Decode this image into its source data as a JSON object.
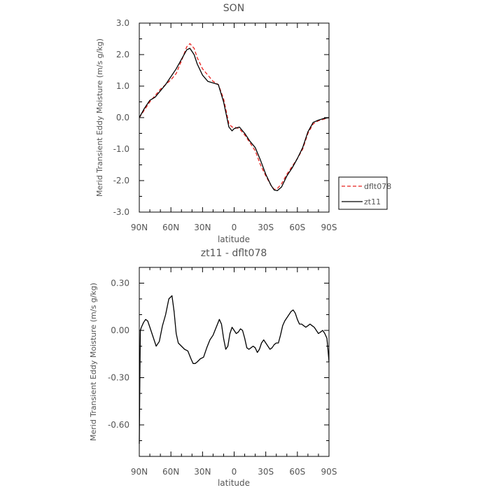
{
  "chart_data": [
    {
      "type": "line",
      "title": "SON",
      "xlabel": "latitude",
      "ylabel": "Merid Transient Eddy Moisture (m/s g/kg)",
      "x_ticks": [
        "90N",
        "60N",
        "30N",
        "0",
        "30S",
        "60S",
        "90S"
      ],
      "x_tick_values": [
        90,
        60,
        30,
        0,
        -30,
        -60,
        -90
      ],
      "xlim": [
        90,
        -90
      ],
      "y_ticks": [
        "3.0",
        "2.0",
        "1.0",
        "0.0",
        "-1.0",
        "-2.0",
        "-3.0"
      ],
      "y_tick_values": [
        3,
        2,
        1,
        0,
        -1,
        -2,
        -3
      ],
      "ylim": [
        -3,
        3
      ],
      "legend_position": "outside-right",
      "grid": false,
      "series": [
        {
          "name": "dflt078",
          "color": "#e8211e",
          "dash": "dashed",
          "x": [
            90,
            85,
            80,
            75,
            70,
            65,
            60,
            55,
            50,
            45,
            42,
            38,
            35,
            30,
            25,
            20,
            15,
            10,
            5,
            2,
            0,
            -5,
            -10,
            -15,
            -20,
            -25,
            -30,
            -35,
            -38,
            -41,
            -45,
            -50,
            -55,
            -60,
            -65,
            -70,
            -75,
            -80,
            -85,
            -90
          ],
          "y": [
            0.0,
            0.25,
            0.5,
            0.7,
            0.9,
            1.05,
            1.2,
            1.4,
            1.8,
            2.25,
            2.35,
            2.2,
            1.9,
            1.55,
            1.35,
            1.15,
            1.05,
            0.6,
            -0.2,
            -0.3,
            -0.3,
            -0.35,
            -0.55,
            -0.8,
            -1.05,
            -1.5,
            -1.85,
            -2.15,
            -2.28,
            -2.25,
            -2.1,
            -1.8,
            -1.55,
            -1.3,
            -1.0,
            -0.5,
            -0.2,
            -0.1,
            -0.05,
            0.0
          ]
        },
        {
          "name": "zt11",
          "color": "#000000",
          "dash": "solid",
          "x": [
            90,
            85,
            80,
            75,
            70,
            65,
            60,
            55,
            50,
            45,
            42,
            38,
            35,
            30,
            25,
            20,
            15,
            10,
            5,
            2,
            0,
            -5,
            -10,
            -15,
            -20,
            -25,
            -30,
            -35,
            -38,
            -41,
            -45,
            -50,
            -55,
            -60,
            -65,
            -70,
            -75,
            -80,
            -85,
            -90
          ],
          "y": [
            0.0,
            0.3,
            0.55,
            0.65,
            0.85,
            1.05,
            1.3,
            1.55,
            1.85,
            2.15,
            2.2,
            2.0,
            1.7,
            1.35,
            1.15,
            1.1,
            1.05,
            0.5,
            -0.3,
            -0.42,
            -0.35,
            -0.3,
            -0.5,
            -0.75,
            -0.95,
            -1.35,
            -1.8,
            -2.15,
            -2.3,
            -2.32,
            -2.2,
            -1.85,
            -1.6,
            -1.3,
            -0.95,
            -0.45,
            -0.15,
            -0.08,
            -0.03,
            0.0
          ]
        }
      ]
    },
    {
      "type": "line",
      "title": "zt11 - dflt078",
      "xlabel": "latitude",
      "ylabel": "Merid Transient Eddy Moisture (m/s g/kg)",
      "x_ticks": [
        "90N",
        "60N",
        "30N",
        "0",
        "30S",
        "60S",
        "90S"
      ],
      "x_tick_values": [
        90,
        60,
        30,
        0,
        -30,
        -60,
        -90
      ],
      "xlim": [
        90,
        -90
      ],
      "y_ticks": [
        "0.30",
        "0.00",
        "-0.30",
        "-0.60"
      ],
      "y_tick_values": [
        0.3,
        0.0,
        -0.3,
        -0.6
      ],
      "ylim": [
        -0.8,
        0.4
      ],
      "grid": false,
      "series": [
        {
          "color": "#000000",
          "dash": "solid",
          "x": [
            90,
            89.5,
            89,
            88,
            86,
            84,
            82,
            80,
            77,
            74,
            71,
            68,
            65,
            62,
            59,
            57,
            55,
            53,
            50,
            47,
            44,
            41,
            39,
            37,
            35,
            32,
            29,
            26,
            23,
            20,
            17,
            14,
            12,
            10,
            8,
            6,
            4,
            2,
            0,
            -2,
            -4,
            -6,
            -8,
            -10,
            -12,
            -14,
            -16,
            -18,
            -20,
            -22,
            -24,
            -26,
            -28,
            -30,
            -32,
            -34,
            -36,
            -38,
            -40,
            -42,
            -44,
            -46,
            -48,
            -50,
            -52,
            -54,
            -56,
            -58,
            -60,
            -62,
            -64,
            -66,
            -68,
            -70,
            -72,
            -74,
            -76,
            -78,
            -80,
            -82,
            -84,
            -86,
            -88,
            -89,
            -90
          ],
          "y": [
            -0.72,
            -0.3,
            0.0,
            0.02,
            0.05,
            0.07,
            0.06,
            0.02,
            -0.04,
            -0.1,
            -0.07,
            0.03,
            0.1,
            0.2,
            0.22,
            0.12,
            -0.02,
            -0.08,
            -0.1,
            -0.12,
            -0.13,
            -0.18,
            -0.21,
            -0.21,
            -0.2,
            -0.18,
            -0.17,
            -0.11,
            -0.06,
            -0.03,
            0.02,
            0.07,
            0.04,
            -0.05,
            -0.12,
            -0.1,
            -0.02,
            0.02,
            0.0,
            -0.02,
            -0.01,
            0.01,
            0.0,
            -0.05,
            -0.11,
            -0.12,
            -0.11,
            -0.1,
            -0.11,
            -0.14,
            -0.12,
            -0.08,
            -0.06,
            -0.08,
            -0.1,
            -0.12,
            -0.11,
            -0.09,
            -0.08,
            -0.08,
            -0.03,
            0.03,
            0.06,
            0.08,
            0.1,
            0.12,
            0.13,
            0.11,
            0.07,
            0.04,
            0.04,
            0.03,
            0.02,
            0.03,
            0.04,
            0.03,
            0.02,
            0.0,
            -0.02,
            -0.01,
            0.0,
            -0.02,
            -0.05,
            -0.12,
            -0.2
          ]
        }
      ]
    }
  ]
}
